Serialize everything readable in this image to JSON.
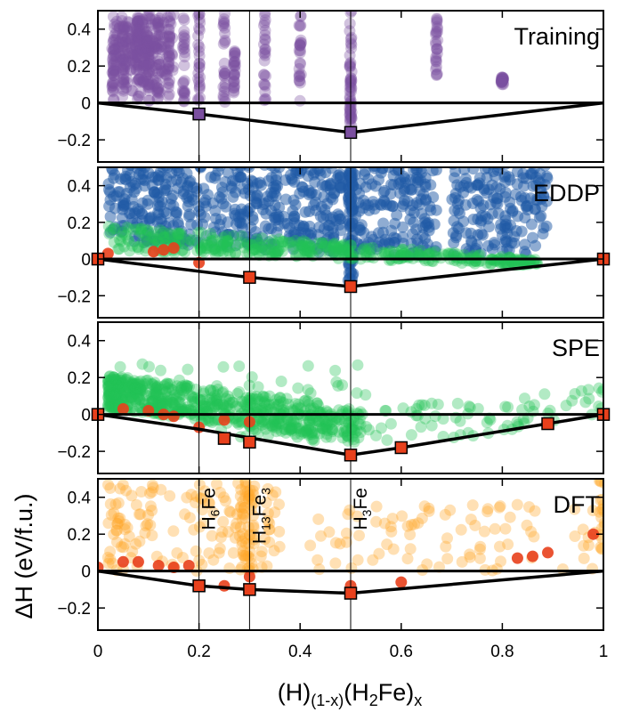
{
  "chart_data": {
    "type": "scatter",
    "xlabel": {
      "base": "(H)",
      "sub1": "(1-x)",
      "mid": "(H",
      "sub2": "2",
      "end": "Fe)",
      "sub3": "x"
    },
    "ylabel": "ΔH (eV/f.u.)",
    "xlim": [
      0,
      1
    ],
    "xticks": [
      0,
      0.2,
      0.4,
      0.6,
      0.8,
      1
    ],
    "xtick_labels": [
      "0",
      "0.2",
      "0.4",
      "0.6",
      "0.8",
      "1"
    ],
    "ylim": [
      -0.32,
      0.5
    ],
    "yticks": [
      -0.2,
      0,
      0.2,
      0.4
    ],
    "ytick_labels": [
      "−0.2",
      "0",
      "0.2",
      "0.4"
    ],
    "vertical_lines": [
      0.2,
      0.3,
      0.5
    ],
    "panels": [
      {
        "label": "Training",
        "hull": [
          [
            0,
            0
          ],
          [
            0.2,
            -0.06
          ],
          [
            0.5,
            -0.16
          ],
          [
            1,
            0
          ]
        ],
        "stable": [
          [
            0.2,
            -0.06
          ],
          [
            0.5,
            -0.16
          ]
        ],
        "stable_style": "purple",
        "near": [],
        "series": [
          {
            "name": "training",
            "color": "#7b4fa0",
            "columns": [
              [
                0.03,
                0.0,
                0.32
              ],
              [
                0.05,
                0.0,
                0.45
              ],
              [
                0.08,
                0.02,
                0.48
              ],
              [
                0.1,
                0.0,
                0.5
              ],
              [
                0.12,
                0.02,
                0.47
              ],
              [
                0.14,
                0.0,
                0.45
              ],
              [
                0.17,
                0.0,
                0.5
              ],
              [
                0.2,
                0.0,
                0.5
              ],
              [
                0.25,
                0.0,
                0.5
              ],
              [
                0.27,
                0.05,
                0.32
              ],
              [
                0.33,
                0.0,
                0.5
              ],
              [
                0.4,
                0.0,
                0.5
              ],
              [
                0.5,
                -0.13,
                0.5
              ],
              [
                0.67,
                0.15,
                0.5
              ],
              [
                0.8,
                0.1,
                0.14
              ],
              [
                0.5,
                -0.1,
                0.22
              ]
            ],
            "scatter_box": [
              [
                0.03,
                0.2,
                0.1,
                0.45
              ],
              [
                0.05,
                0.05,
                0.12,
                0.4
              ]
            ],
            "seed": 11,
            "count": 520
          }
        ]
      },
      {
        "label": "EDDP",
        "hull": [
          [
            0,
            0
          ],
          [
            0.3,
            -0.1
          ],
          [
            0.5,
            -0.15
          ],
          [
            1,
            0
          ]
        ],
        "stable": [
          [
            0,
            0
          ],
          [
            0.3,
            -0.1
          ],
          [
            0.5,
            -0.15
          ],
          [
            1,
            0
          ]
        ],
        "stable_style": "red",
        "near": [
          [
            0.11,
            0.04
          ],
          [
            0.13,
            0.05
          ],
          [
            0.15,
            0.06
          ],
          [
            0.2,
            -0.02
          ],
          [
            0.02,
            0.03
          ]
        ],
        "series": [
          {
            "name": "eddp",
            "color": "#1f5aa6"
          },
          {
            "name": "spe",
            "color": "#22c455"
          }
        ]
      },
      {
        "label": "SPE",
        "hull": [
          [
            0,
            0
          ],
          [
            0.2,
            -0.08
          ],
          [
            0.5,
            -0.22
          ],
          [
            0.6,
            -0.18
          ],
          [
            0.89,
            -0.05
          ],
          [
            1,
            0
          ]
        ],
        "stable": [
          [
            0,
            0
          ],
          [
            0.25,
            -0.13
          ],
          [
            0.3,
            -0.15
          ],
          [
            0.5,
            -0.22
          ],
          [
            0.6,
            -0.18
          ],
          [
            0.89,
            -0.05
          ],
          [
            1,
            0
          ]
        ],
        "stable_style": "red",
        "near": [
          [
            0.1,
            0.02
          ],
          [
            0.13,
            0.0
          ],
          [
            0.15,
            -0.01
          ],
          [
            0.2,
            -0.07
          ],
          [
            0.25,
            -0.03
          ],
          [
            0.3,
            -0.04
          ],
          [
            0.05,
            0.03
          ]
        ],
        "series": [
          {
            "name": "spe",
            "color": "#22c455"
          }
        ]
      },
      {
        "label": "DFT",
        "hull": [
          [
            0,
            0
          ],
          [
            0.2,
            -0.08
          ],
          [
            0.3,
            -0.1
          ],
          [
            0.5,
            -0.12
          ],
          [
            1,
            0
          ]
        ],
        "stable": [
          [
            0.2,
            -0.08
          ],
          [
            0.3,
            -0.1
          ],
          [
            0.5,
            -0.12
          ]
        ],
        "stable_style": "orange",
        "near": [
          [
            0.0,
            0.02
          ],
          [
            0.05,
            0.05
          ],
          [
            0.08,
            0.05
          ],
          [
            0.12,
            0.03
          ],
          [
            0.15,
            0.02
          ],
          [
            0.18,
            0.03
          ],
          [
            0.25,
            -0.08
          ],
          [
            0.3,
            -0.03
          ],
          [
            0.5,
            -0.08
          ],
          [
            0.6,
            -0.06
          ],
          [
            0.83,
            0.07
          ],
          [
            0.86,
            0.08
          ],
          [
            0.89,
            0.1
          ],
          [
            0.98,
            0.2
          ]
        ],
        "series": [
          {
            "name": "dft",
            "color": "#ffa629"
          }
        ],
        "phase_labels": [
          {
            "x": 0.2,
            "main": "H",
            "sub": "6",
            "tail": "Fe"
          },
          {
            "x": 0.3,
            "main": "H",
            "sub": "13",
            "mid": "Fe",
            "sub2": "3"
          },
          {
            "x": 0.5,
            "main": "H",
            "sub": "3",
            "tail": "Fe"
          }
        ]
      }
    ]
  }
}
